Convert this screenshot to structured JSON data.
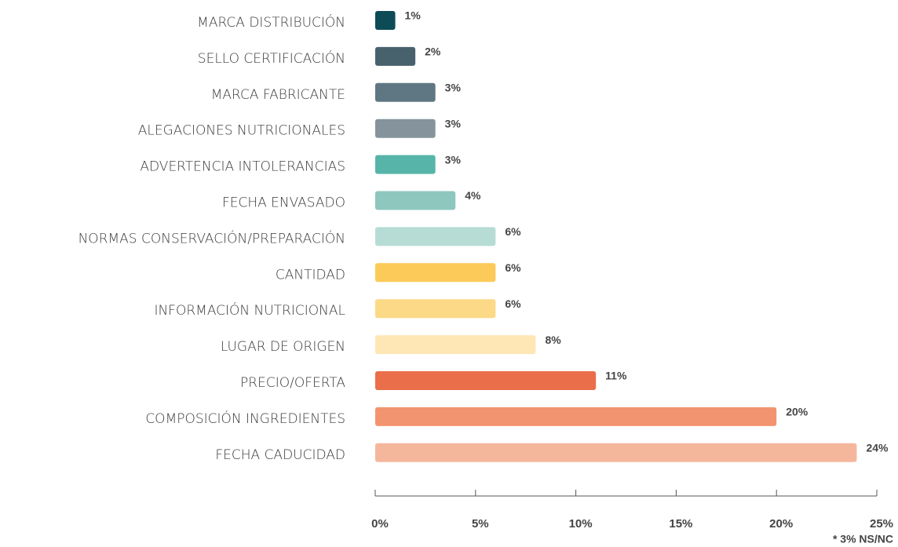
{
  "chart_data": {
    "type": "bar",
    "orientation": "horizontal",
    "categories": [
      "MARCA DISTRIBUCIÓN",
      "SELLO CERTIFICACIÓN",
      "MARCA FABRICANTE",
      "ALEGACIONES NUTRICIONALES",
      "ADVERTENCIA INTOLERANCIAS",
      "FECHA ENVASADO",
      "NORMAS CONSERVACIÓN/PREPARACIÓN",
      "CANTIDAD",
      "INFORMACIÓN NUTRICIONAL",
      "LUGAR DE ORIGEN",
      "PRECIO/OFERTA",
      "COMPOSICIÓN INGREDIENTES",
      "FECHA CADUCIDAD"
    ],
    "values": [
      1,
      2,
      3,
      3,
      3,
      4,
      6,
      6,
      6,
      8,
      11,
      20,
      24
    ],
    "value_labels": [
      "1%",
      "2%",
      "3%",
      "3%",
      "3%",
      "4%",
      "6%",
      "6%",
      "6%",
      "8%",
      "11%",
      "20%",
      "24%"
    ],
    "colors": [
      "#0d4b57",
      "#47626d",
      "#5f7782",
      "#85949c",
      "#56b5a8",
      "#8ec7bd",
      "#b7dcd5",
      "#fcca58",
      "#fcd987",
      "#fee7b5",
      "#ea6e4a",
      "#f2946f",
      "#f5b79c"
    ],
    "xlim": [
      0,
      25
    ],
    "xticks": [
      {
        "value": 0,
        "label": "0%"
      },
      {
        "value": 5,
        "label": "5%"
      },
      {
        "value": 10,
        "label": "10%"
      },
      {
        "value": 15,
        "label": "15%"
      },
      {
        "value": 20,
        "label": "20%"
      },
      {
        "value": 25,
        "label": "25%"
      }
    ],
    "note": "* 3% NS/NC"
  }
}
